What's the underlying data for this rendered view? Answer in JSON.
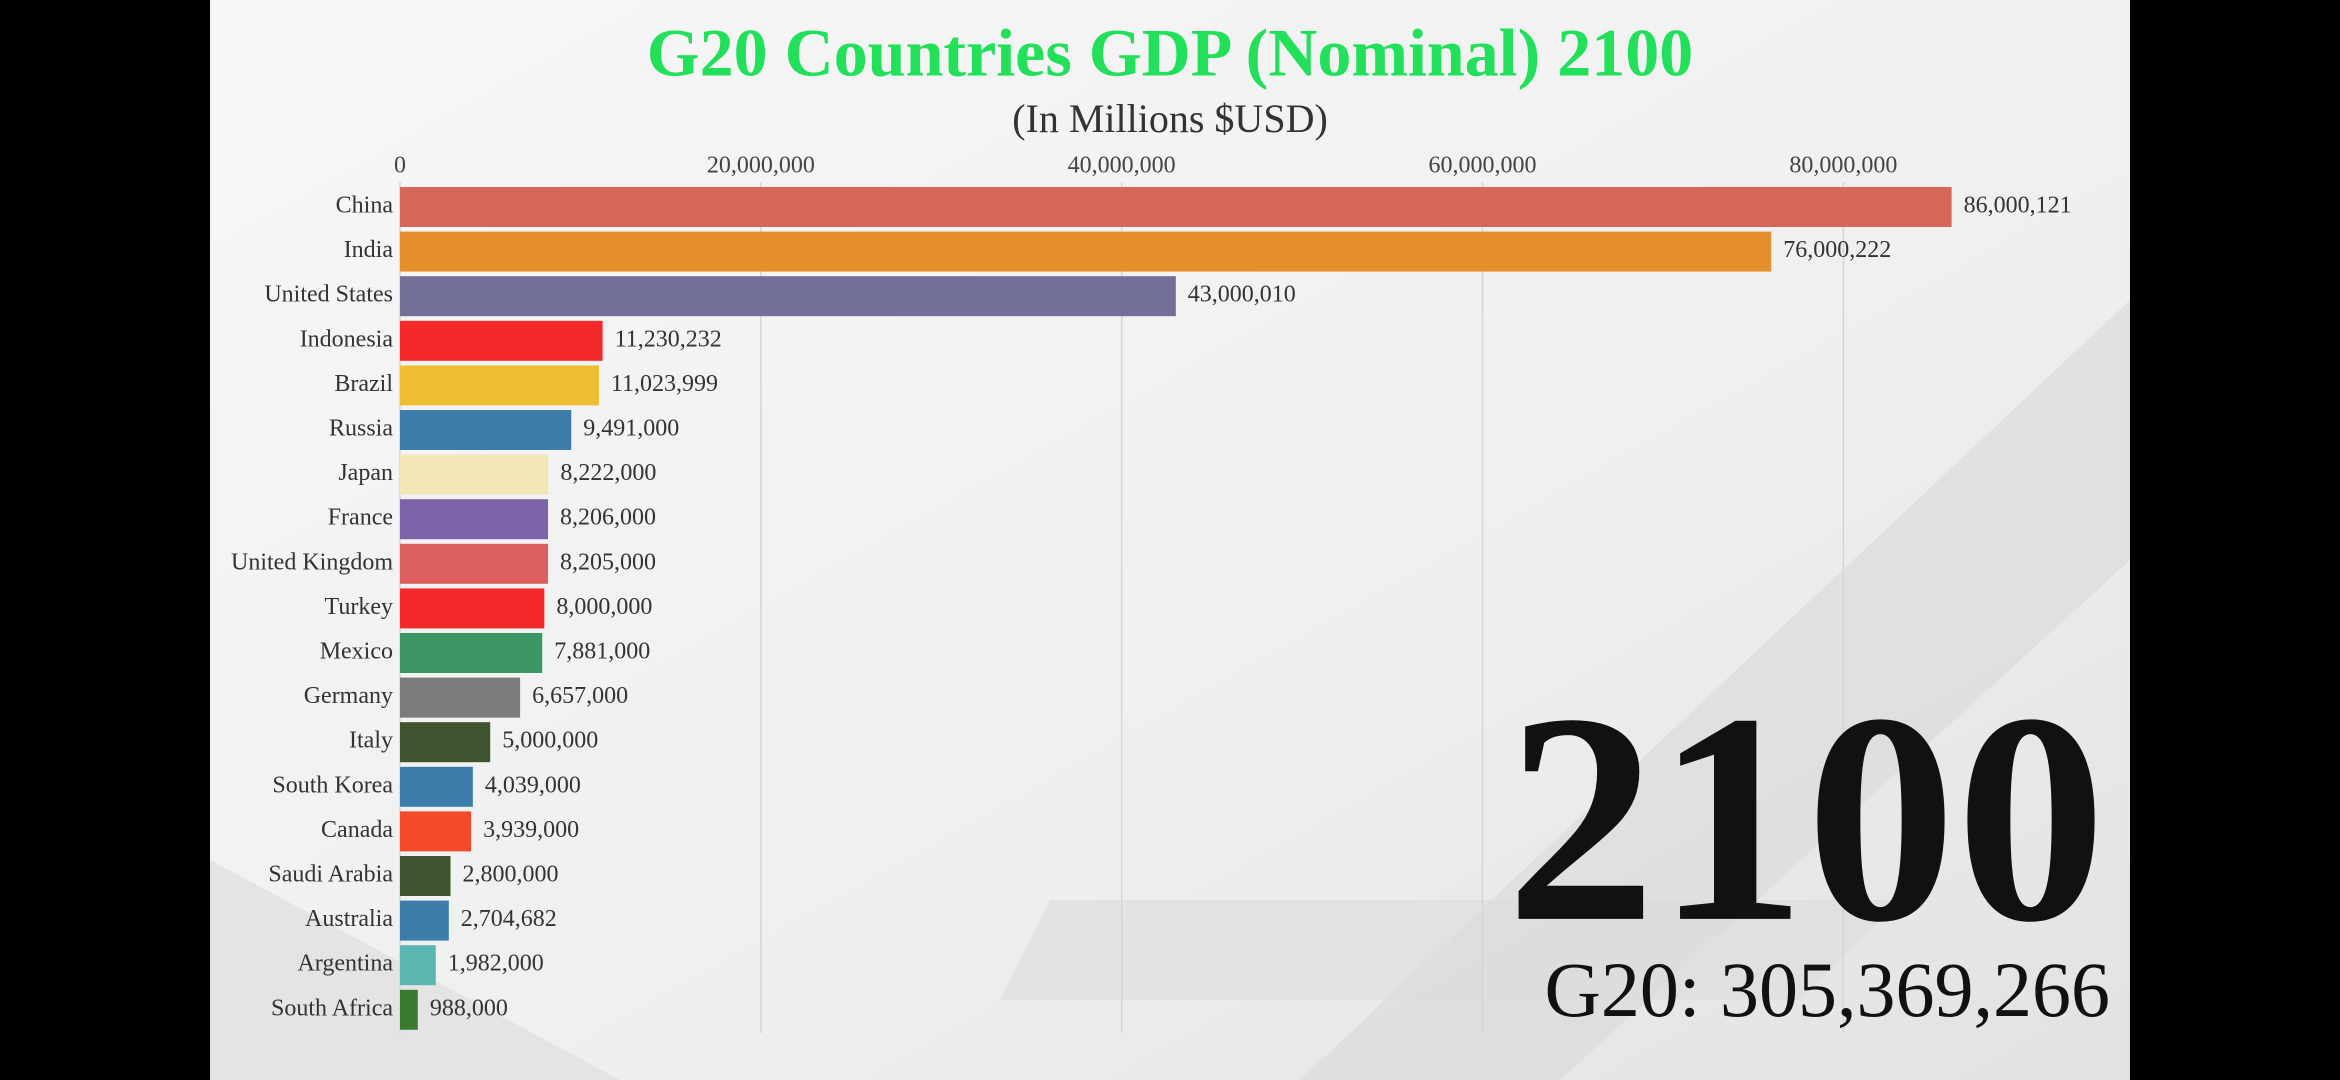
{
  "chart_data": {
    "type": "bar",
    "orientation": "horizontal",
    "title": "G20 Countries GDP (Nominal) 2100",
    "subtitle": "(In Millions $USD)",
    "categories": [
      "China",
      "India",
      "United States",
      "Indonesia",
      "Brazil",
      "Russia",
      "Japan",
      "France",
      "United Kingdom",
      "Turkey",
      "Mexico",
      "Germany",
      "Italy",
      "South Korea",
      "Canada",
      "Saudi Arabia",
      "Australia",
      "Argentina",
      "South Africa"
    ],
    "values": [
      86000121,
      76000222,
      43000010,
      11230232,
      11023999,
      9491000,
      8222000,
      8206000,
      8205000,
      8000000,
      7881000,
      6657000,
      5000000,
      4039000,
      3939000,
      2800000,
      2704682,
      1982000,
      988000
    ],
    "value_labels": [
      "86,000,121",
      "76,000,222",
      "43,000,010",
      "11,230,232",
      "11,023,999",
      "9,491,000",
      "8,222,000",
      "8,206,000",
      "8,205,000",
      "8,000,000",
      "7,881,000",
      "6,657,000",
      "5,000,000",
      "4,039,000",
      "3,939,000",
      "2,800,000",
      "2,704,682",
      "1,982,000",
      "988,000"
    ],
    "colors": [
      "#d4675a",
      "#e48f2c",
      "#727099",
      "#f42a2a",
      "#edbe32",
      "#3d7dab",
      "#f3e7b5",
      "#7c64a8",
      "#dd6060",
      "#f42a2a",
      "#3c9663",
      "#7b7b7b",
      "#3f532f",
      "#3d7dab",
      "#f4492a",
      "#3f532f",
      "#3d7dab",
      "#5bb5b0",
      "#3c7a30"
    ],
    "xlim": [
      0,
      95000000
    ],
    "xticks": [
      0,
      {
        "value": 20000000,
        "label": "20,000,000"
      },
      {
        "value": 40000000,
        "label": "40,000,000"
      },
      {
        "value": 60000000,
        "label": "60,000,000"
      },
      {
        "value": 80000000,
        "label": "80,000,000"
      }
    ],
    "grid": true,
    "annotations": [
      "2100",
      "G20: 305,369,266"
    ]
  }
}
